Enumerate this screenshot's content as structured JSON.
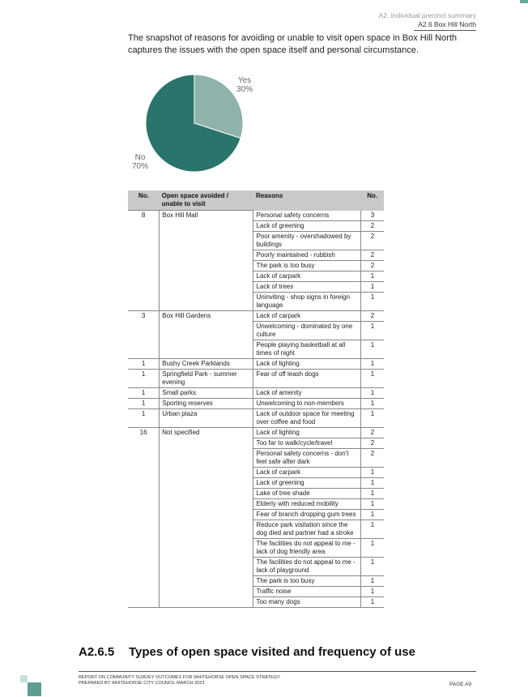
{
  "header": {
    "section": "A2. Individual precinct summary",
    "subsection": "A2.6 Box Hill North"
  },
  "intro": "The snapshot of reasons for avoiding or unable to visit open space in Box Hill North captures the issues with the open space itself and personal circumstance.",
  "chart_data": {
    "type": "pie",
    "categories": [
      "Yes",
      "No"
    ],
    "values": [
      30,
      70
    ],
    "labels": [
      "30%",
      "70%"
    ],
    "colors": [
      "#8fb2aa",
      "#29756b"
    ]
  },
  "table": {
    "headers": [
      "No.",
      "Open space avoided / unable to visit",
      "Reasons",
      "No."
    ],
    "groups": [
      {
        "no": "8",
        "site": "Box Hill Mall",
        "reasons": [
          {
            "text": "Personal safety concerns",
            "count": "3"
          },
          {
            "text": "Lack of greening",
            "count": "2"
          },
          {
            "text": "Poor amenity - overshadowed by buildings",
            "count": "2"
          },
          {
            "text": "Poorly maintained - rubbish",
            "count": "2"
          },
          {
            "text": "The park is too busy",
            "count": "2"
          },
          {
            "text": "Lack of carpark",
            "count": "1"
          },
          {
            "text": "Lack of trees",
            "count": "1"
          },
          {
            "text": "Uninviting - shop signs in foreign language",
            "count": "1"
          }
        ]
      },
      {
        "no": "3",
        "site": "Box Hill Gardens",
        "reasons": [
          {
            "text": "Lack of carpark",
            "count": "2"
          },
          {
            "text": "Unwelcoming - dominated by one culture",
            "count": "1"
          },
          {
            "text": "People playing basketball at all times of night",
            "count": "1"
          }
        ]
      },
      {
        "no": "1",
        "site": "Bushy Creek Parklands",
        "reasons": [
          {
            "text": "Lack of lighting",
            "count": "1"
          }
        ]
      },
      {
        "no": "1",
        "site": "Springfield Park - summer evening",
        "reasons": [
          {
            "text": "Fear of off leash dogs",
            "count": "1"
          }
        ]
      },
      {
        "no": "1",
        "site": "Small parks",
        "reasons": [
          {
            "text": "Lack of amenity",
            "count": "1"
          }
        ]
      },
      {
        "no": "1",
        "site": "Sporting reserves",
        "reasons": [
          {
            "text": "Unwelcoming to non-members",
            "count": "1"
          }
        ]
      },
      {
        "no": "1",
        "site": "Urban plaza",
        "reasons": [
          {
            "text": "Lack of outdoor space for meeting over coffee and food",
            "count": "1"
          }
        ]
      },
      {
        "no": "16",
        "site": "Not specified",
        "reasons": [
          {
            "text": "Lack of lighting",
            "count": "2"
          },
          {
            "text": "Too far to walk/cycle/travel",
            "count": "2"
          },
          {
            "text": "Personal safety concerns - don't feel safe after dark",
            "count": "2"
          },
          {
            "text": "Lack of carpark",
            "count": "1"
          },
          {
            "text": "Lack of greening",
            "count": "1"
          },
          {
            "text": "Lake of tree shade",
            "count": "1"
          },
          {
            "text": "Elderly with reduced mobility",
            "count": "1"
          },
          {
            "text": "Fear of branch dropping gum trees",
            "count": "1"
          },
          {
            "text": "Reduce park visitation since the dog died and partner had a stroke",
            "count": "1"
          },
          {
            "text": "The facilities do not appeal to me - lack of dog friendly area",
            "count": "1"
          },
          {
            "text": "The facilities do not appeal to me - lack of playground",
            "count": "1"
          },
          {
            "text": "The park is too busy",
            "count": "1"
          },
          {
            "text": "Traffic noise",
            "count": "1"
          },
          {
            "text": "Too many dogs",
            "count": "1"
          }
        ]
      }
    ]
  },
  "section": {
    "number": "A2.6.5",
    "title": "Types of open space visited and frequency of use"
  },
  "footer": {
    "line1": "REPORT ON COMMUNITY SURVEY OUTCOMES FOR WHITEHORSE OPEN SPACE STRATEGY",
    "line2": "PREPARED BY WHITEHORSE CITY COUNCIL MARCH 2023",
    "page": "PAGE A9"
  }
}
